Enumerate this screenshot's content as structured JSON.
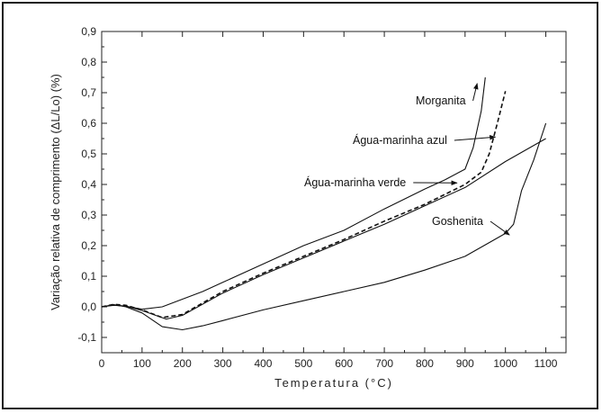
{
  "chart_data": {
    "type": "line",
    "title": "",
    "xlabel": "Temperatura (°C)",
    "ylabel": "Variação relativa de comprimento (ΔL/Lo) (%)",
    "xlim": [
      0,
      1150
    ],
    "ylim": [
      -0.15,
      0.9
    ],
    "x_ticks": [
      0,
      100,
      200,
      300,
      400,
      500,
      600,
      700,
      800,
      900,
      1000,
      1100
    ],
    "y_ticks": [
      -0.1,
      0.0,
      0.1,
      0.2,
      0.3,
      0.4,
      0.5,
      0.6,
      0.7,
      0.8,
      0.9
    ],
    "y_tick_labels": [
      "-0,1",
      "0,0",
      "0,1",
      "0,2",
      "0,3",
      "0,4",
      "0,5",
      "0,6",
      "0,7",
      "0,8",
      "0,9"
    ],
    "grid": false,
    "legend": "none",
    "series": [
      {
        "name": "Morganita",
        "style": "solid",
        "color": "#111111",
        "x": [
          0,
          30,
          60,
          100,
          150,
          200,
          250,
          300,
          400,
          500,
          600,
          700,
          800,
          850,
          900,
          920,
          940,
          950
        ],
        "y": [
          0.0,
          0.005,
          0.002,
          -0.008,
          0.0,
          0.025,
          0.05,
          0.08,
          0.14,
          0.2,
          0.25,
          0.32,
          0.385,
          0.415,
          0.45,
          0.52,
          0.64,
          0.75
        ]
      },
      {
        "name": "Água-marinha azul",
        "style": "dashed",
        "color": "#111111",
        "x": [
          0,
          30,
          60,
          100,
          150,
          200,
          300,
          400,
          500,
          600,
          700,
          800,
          900,
          940,
          960,
          980,
          1000
        ],
        "y": [
          0.0,
          0.008,
          0.005,
          -0.01,
          -0.035,
          -0.025,
          0.05,
          0.11,
          0.165,
          0.22,
          0.28,
          0.335,
          0.4,
          0.44,
          0.5,
          0.6,
          0.705
        ]
      },
      {
        "name": "Água-marinha verde",
        "style": "solid",
        "color": "#111111",
        "x": [
          0,
          30,
          60,
          100,
          160,
          200,
          300,
          400,
          500,
          600,
          700,
          800,
          900,
          1000,
          1100
        ],
        "y": [
          0.0,
          0.006,
          0.002,
          -0.012,
          -0.04,
          -0.028,
          0.045,
          0.105,
          0.16,
          0.215,
          0.27,
          0.33,
          0.39,
          0.475,
          0.55
        ]
      },
      {
        "name": "Goshenita",
        "style": "solid",
        "color": "#111111",
        "x": [
          0,
          30,
          60,
          100,
          150,
          200,
          250,
          300,
          400,
          500,
          600,
          700,
          800,
          900,
          960,
          1000,
          1020,
          1040,
          1070,
          1100
        ],
        "y": [
          0.0,
          0.007,
          0.0,
          -0.02,
          -0.065,
          -0.075,
          -0.062,
          -0.045,
          -0.01,
          0.02,
          0.05,
          0.08,
          0.12,
          0.165,
          0.21,
          0.24,
          0.27,
          0.38,
          0.48,
          0.6
        ]
      }
    ],
    "annotations": [
      {
        "text": "Morganita",
        "series": "Morganita",
        "arrow_to": [
          930,
          0.73
        ]
      },
      {
        "text": "Água-marinha azul",
        "series": "Água-marinha azul",
        "arrow_to": [
          975,
          0.555
        ]
      },
      {
        "text": "Água-marinha verde",
        "series": "Água-marinha verde",
        "arrow_to": [
          880,
          0.405
        ]
      },
      {
        "text": "Goshenita",
        "series": "Goshenita",
        "arrow_to": [
          1010,
          0.235
        ]
      }
    ]
  }
}
